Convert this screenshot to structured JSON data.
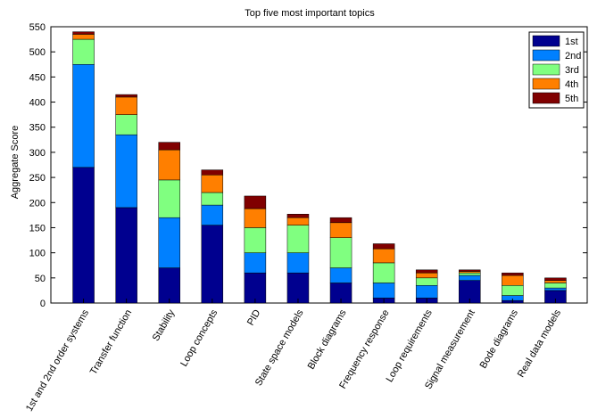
{
  "chart_data": {
    "type": "bar",
    "stacked": true,
    "title": "Top five most important topics",
    "ylabel": "Aggregate Score",
    "xlabel": "",
    "ylim": [
      0,
      550
    ],
    "yticks": [
      0,
      50,
      100,
      150,
      200,
      250,
      300,
      350,
      400,
      450,
      500,
      550
    ],
    "grid": false,
    "legend_position": "top-right",
    "categories": [
      "1st and 2nd order systems",
      "Transfer function",
      "Stability",
      "Loop concepts",
      "PID",
      "State space models",
      "Block diagrams",
      "Frequency response",
      "Loop requirements",
      "Signal measurement",
      "Bode diagrams",
      "Real data models"
    ],
    "series": [
      {
        "name": "1st",
        "color": "#00008f",
        "values": [
          270,
          190,
          70,
          155,
          60,
          60,
          40,
          10,
          10,
          45,
          5,
          25
        ]
      },
      {
        "name": "2nd",
        "color": "#0080ff",
        "values": [
          205,
          145,
          100,
          40,
          40,
          40,
          30,
          30,
          25,
          10,
          10,
          5
        ]
      },
      {
        "name": "3rd",
        "color": "#80ff80",
        "values": [
          50,
          40,
          75,
          25,
          50,
          55,
          60,
          40,
          15,
          5,
          20,
          10
        ]
      },
      {
        "name": "4th",
        "color": "#ff7f00",
        "values": [
          10,
          35,
          60,
          35,
          38,
          15,
          30,
          28,
          10,
          3,
          20,
          5
        ]
      },
      {
        "name": "5th",
        "color": "#800000",
        "values": [
          5,
          5,
          15,
          10,
          25,
          7,
          10,
          10,
          6,
          3,
          5,
          5
        ]
      }
    ]
  }
}
